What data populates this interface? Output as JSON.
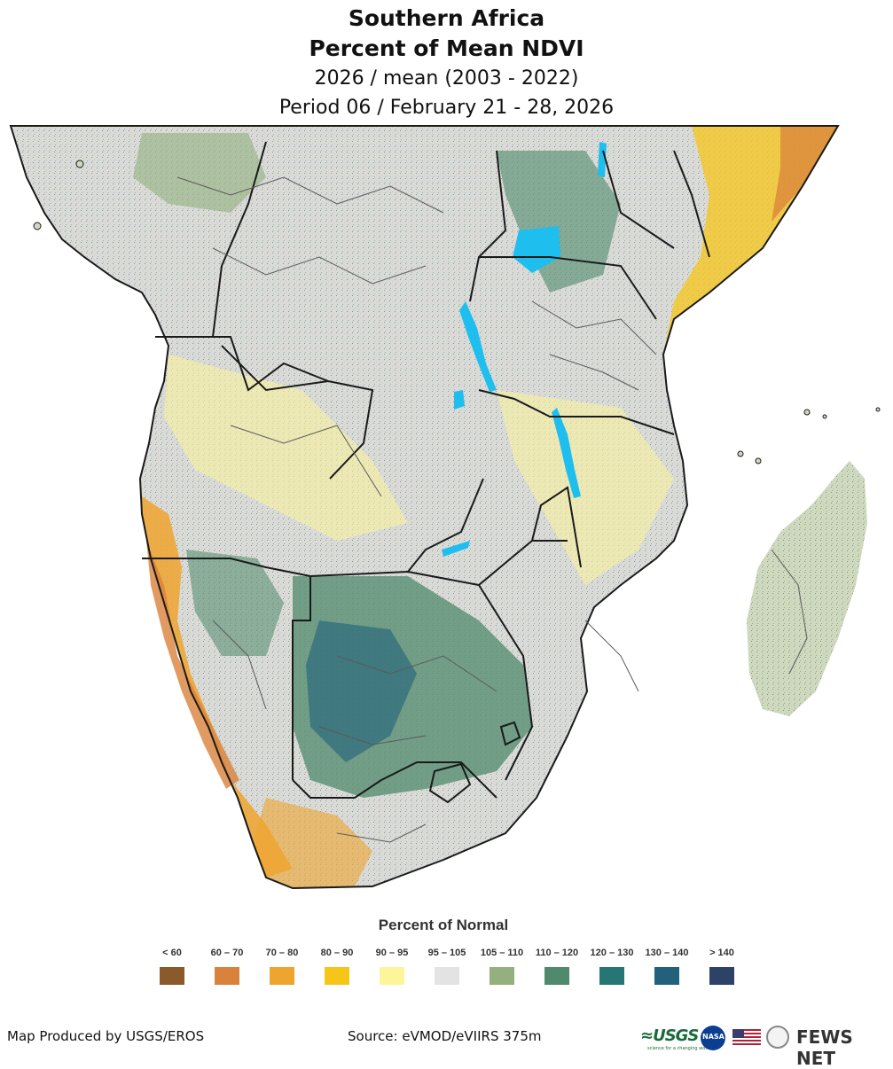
{
  "title": {
    "line1": "Southern Africa",
    "line2": "Percent of Mean NDVI",
    "line3": "2026 / mean (2003 - 2022)",
    "line4": "Period 06 / February 21 - 28, 2026"
  },
  "map": {
    "colors": {
      "land_base": "#d9d9d9",
      "water": "#1ebeef",
      "border": "#222222",
      "sub_border": "#5a5a5a"
    },
    "regions_description": "NDVI anomaly shading"
  },
  "legend": {
    "title": "Percent of Normal",
    "items": [
      {
        "label": "< 60",
        "color": "#8a5a2b"
      },
      {
        "label": "60 – 70",
        "color": "#d9823b"
      },
      {
        "label": "70 – 80",
        "color": "#eea52f"
      },
      {
        "label": "80 – 90",
        "color": "#f5c518"
      },
      {
        "label": "90 – 95",
        "color": "#fdf59a"
      },
      {
        "label": "95 – 105",
        "color": "#e3e3e3"
      },
      {
        "label": "105 – 110",
        "color": "#93b07e"
      },
      {
        "label": "110 – 120",
        "color": "#4f8a6c"
      },
      {
        "label": "120 – 130",
        "color": "#267676"
      },
      {
        "label": "130 – 140",
        "color": "#22617b"
      },
      {
        "label": "> 140",
        "color": "#2c4267"
      }
    ]
  },
  "footer": {
    "left": "Map Produced by USGS/EROS",
    "middle": "Source: eVMOD/eVIIRS 375m",
    "logos": {
      "usgs": "≈USGS",
      "usgs_tagline": "science for a changing world",
      "nasa": "NASA",
      "fews": "FEWS NET"
    }
  }
}
